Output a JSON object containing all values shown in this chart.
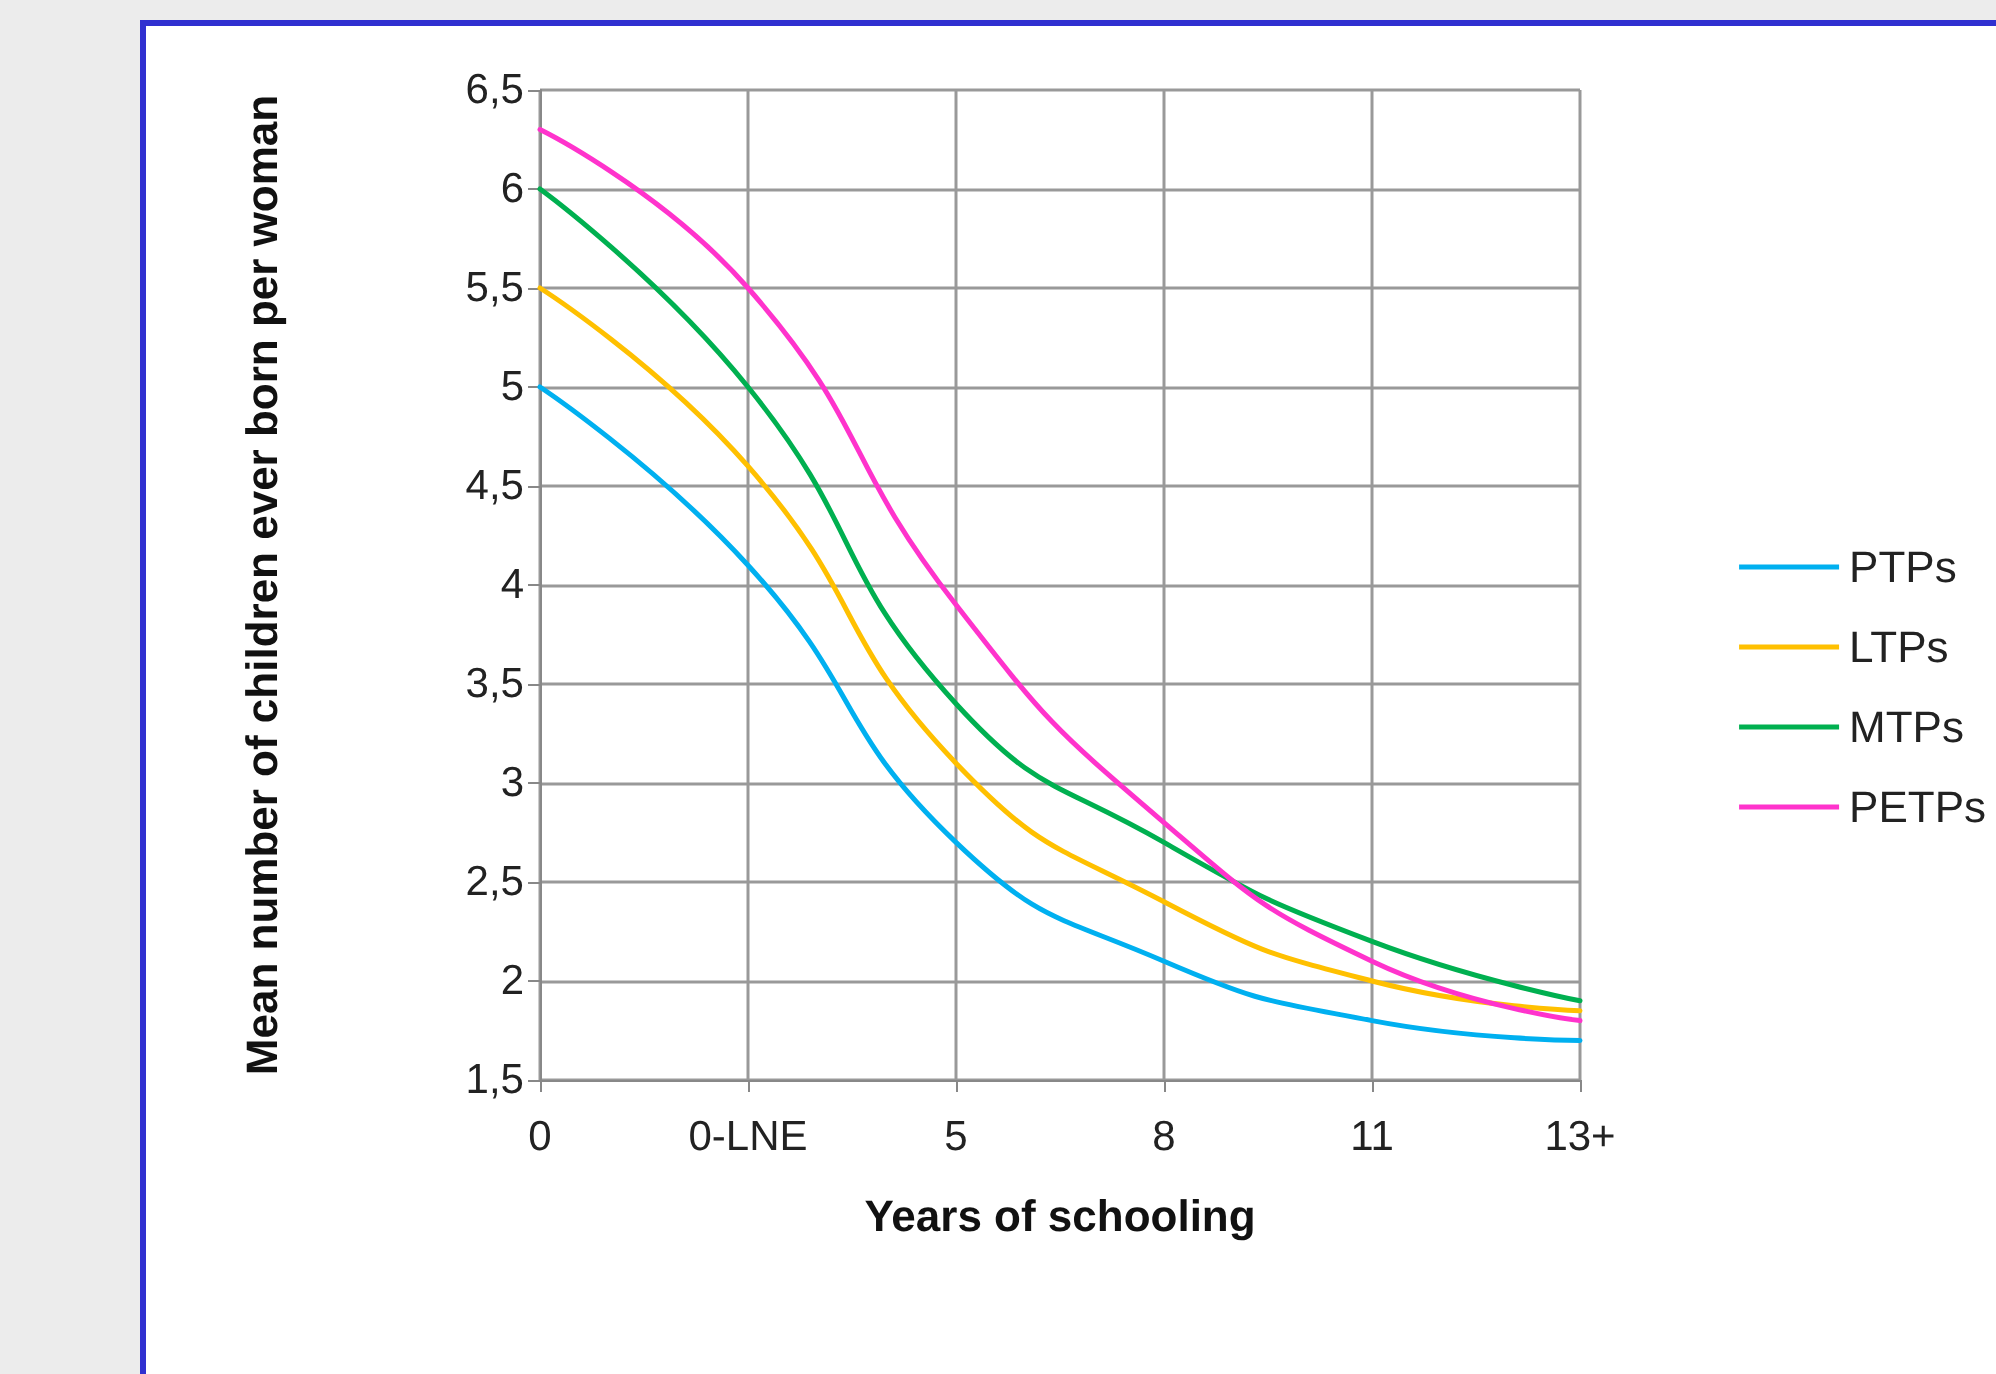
{
  "chart_data": {
    "type": "line",
    "xlabel": "Years of schooling",
    "ylabel": "Mean number of children ever born per woman",
    "categories": [
      "0",
      "0-LNE",
      "5",
      "8",
      "11",
      "13+"
    ],
    "series": [
      {
        "name": "PTPs",
        "color": "#00b0f0",
        "values": [
          5.0,
          4.1,
          2.7,
          2.1,
          1.8,
          1.7
        ]
      },
      {
        "name": "LTPs",
        "color": "#ffc000",
        "values": [
          5.5,
          4.6,
          3.1,
          2.4,
          2.0,
          1.85
        ]
      },
      {
        "name": "MTPs",
        "color": "#00b050",
        "values": [
          6.0,
          5.0,
          3.4,
          2.7,
          2.2,
          1.9
        ]
      },
      {
        "name": "PETPs",
        "color": "#ff33cc",
        "values": [
          6.3,
          5.5,
          3.9,
          2.8,
          2.1,
          1.8
        ]
      }
    ],
    "ylim": [
      1.5,
      6.5
    ],
    "yticks": [
      {
        "value": 1.5,
        "label": "1,5"
      },
      2,
      {
        "value": 2.5,
        "label": "2,5"
      },
      3,
      {
        "value": 3.5,
        "label": "3,5"
      },
      4,
      {
        "value": 4.5,
        "label": "4,5"
      },
      5,
      {
        "value": 5.5,
        "label": "5,5"
      },
      6,
      {
        "value": 6.5,
        "label": "6,5"
      }
    ],
    "grid": true,
    "legend": "right",
    "marker": "none",
    "line_style": "solid"
  }
}
